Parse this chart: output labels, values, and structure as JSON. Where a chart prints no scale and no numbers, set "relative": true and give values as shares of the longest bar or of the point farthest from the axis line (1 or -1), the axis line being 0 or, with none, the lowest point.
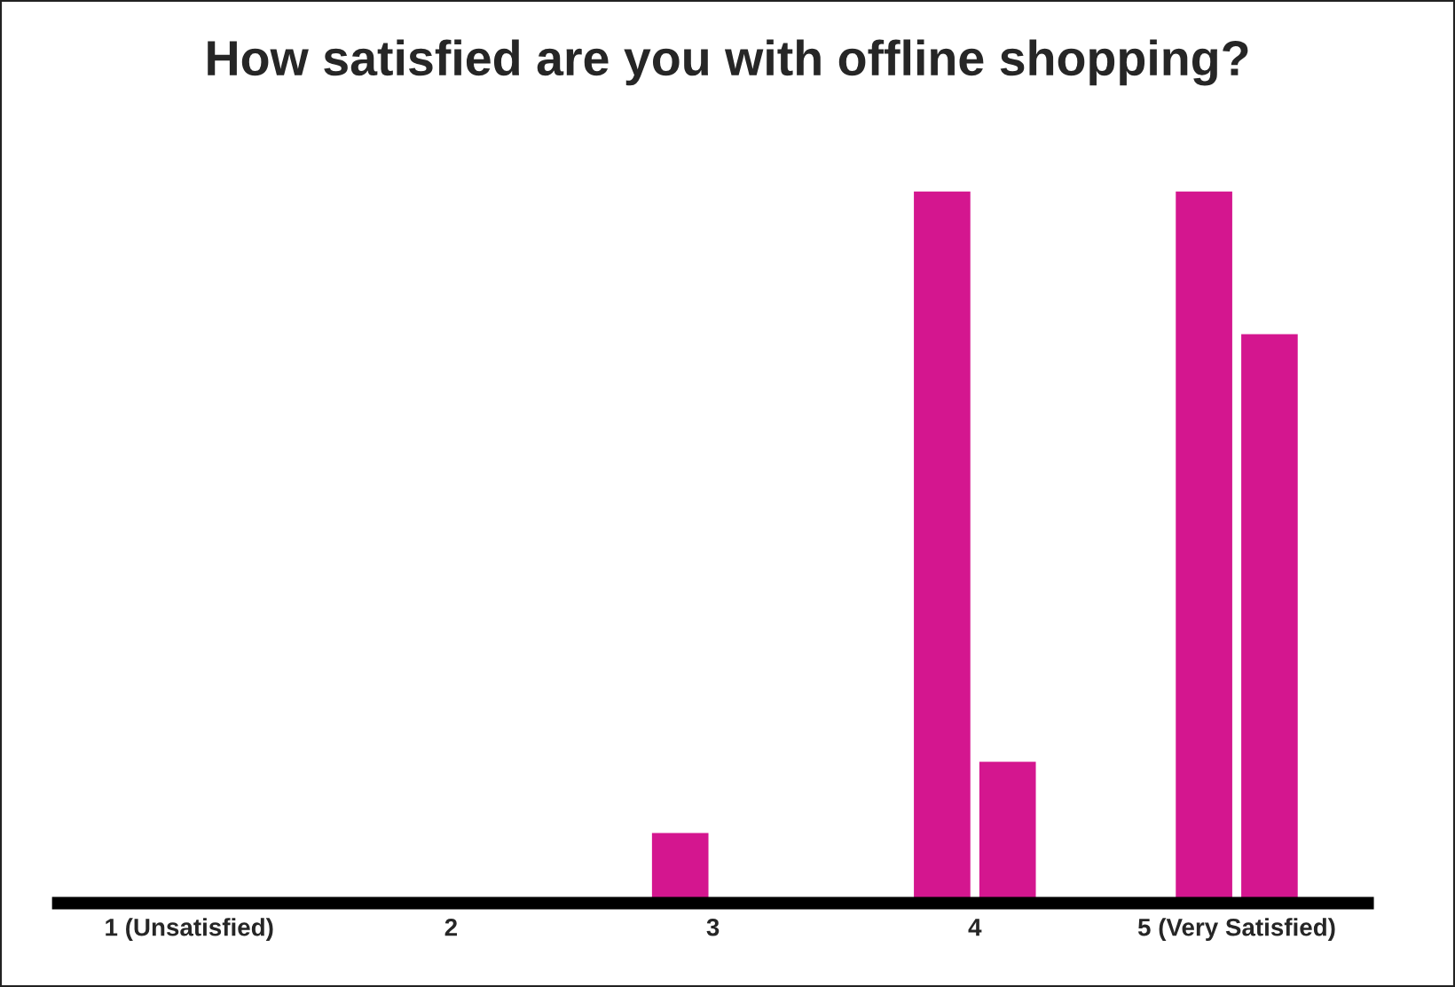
{
  "chart_data": {
    "type": "bar",
    "title": "How satisfied are you with offline shopping?",
    "categories": [
      "1 (Unsatisfied)",
      "2",
      "3",
      "4",
      "5 (Very Satisfied)"
    ],
    "relative": true,
    "grid": false,
    "series": [
      {
        "color": "#d4168f",
        "values": [
          null,
          null,
          0.1,
          1,
          1
        ]
      },
      {
        "color": "#d4168f",
        "values": [
          null,
          null,
          null,
          0.2,
          0.8
        ]
      }
    ]
  }
}
